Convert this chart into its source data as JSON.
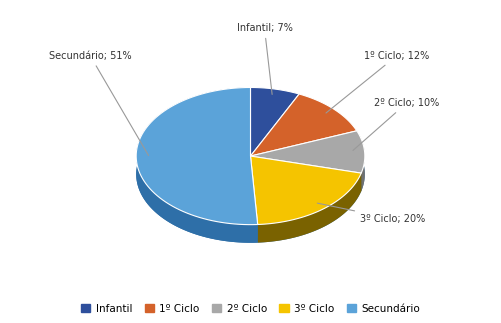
{
  "labels": [
    "Infantil",
    "1º Ciclo",
    "2º Ciclo",
    "3º Ciclo",
    "Secundário"
  ],
  "values": [
    7,
    12,
    10,
    20,
    51
  ],
  "colors_top": [
    "#2E4F9C",
    "#D4622A",
    "#A8A8A8",
    "#F5C400",
    "#5BA3D9"
  ],
  "colors_side": [
    "#1E3470",
    "#8B3A15",
    "#707070",
    "#7A6200",
    "#2E6FA8"
  ],
  "label_texts": [
    "Infantil; 7%",
    "1º Ciclo; 12%",
    "2º Ciclo; 10%",
    "3º Ciclo; 20%",
    "Secundário; 51%"
  ],
  "background_color": "#FFFFFF",
  "legend_labels": [
    "Infantil",
    "1º Ciclo",
    "2º Ciclo",
    "3º Ciclo",
    "Secundário"
  ],
  "figsize": [
    5.01,
    3.23
  ],
  "dpi": 100
}
